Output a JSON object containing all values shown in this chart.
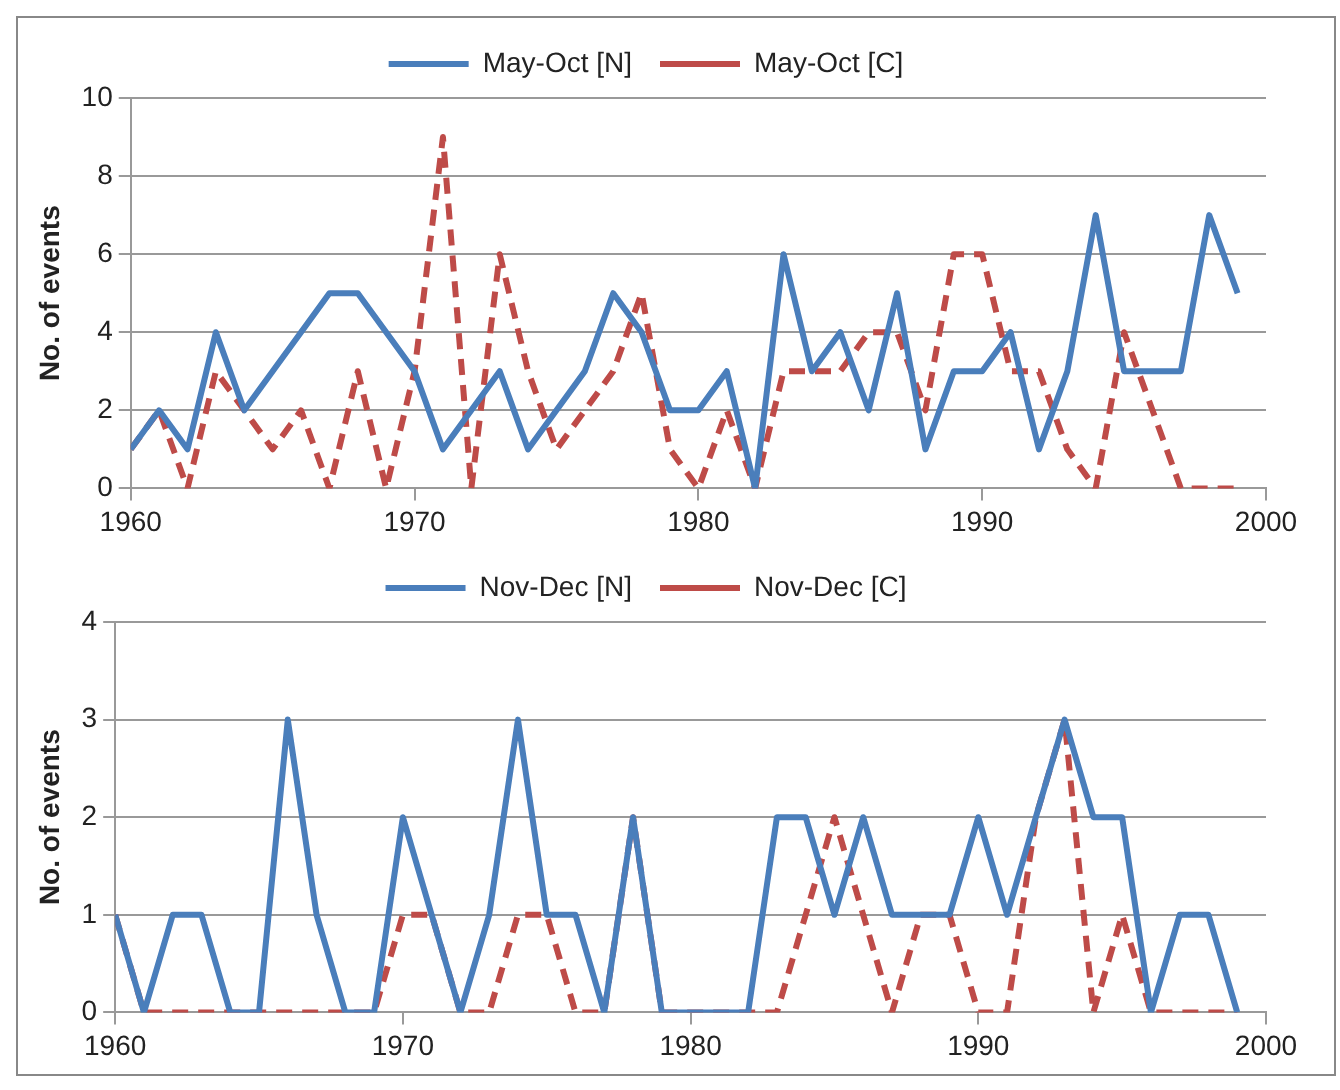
{
  "chart_data": [
    {
      "type": "line",
      "ylabel": "No. of events",
      "x": [
        1960,
        1961,
        1962,
        1963,
        1964,
        1965,
        1966,
        1967,
        1968,
        1969,
        1970,
        1971,
        1972,
        1973,
        1974,
        1975,
        1976,
        1977,
        1978,
        1979,
        1980,
        1981,
        1982,
        1983,
        1984,
        1985,
        1986,
        1987,
        1988,
        1989,
        1990,
        1991,
        1992,
        1993,
        1994,
        1995,
        1996,
        1997,
        1998,
        1999
      ],
      "series": [
        {
          "name": "May-Oct [N]",
          "color": "#4a7ebb",
          "line_style": "solid",
          "values": [
            1,
            2,
            1,
            4,
            2,
            3,
            4,
            5,
            5,
            4,
            3,
            1,
            2,
            3,
            1,
            2,
            3,
            5,
            4,
            2,
            2,
            3,
            0,
            6,
            3,
            4,
            2,
            5,
            1,
            3,
            3,
            4,
            1,
            3,
            7,
            3,
            3,
            3,
            7,
            5
          ]
        },
        {
          "name": "May-Oct [C]",
          "color": "#be4b48",
          "line_style": "dashed",
          "values": [
            1,
            2,
            0,
            3,
            2,
            1,
            2,
            0,
            3,
            0,
            3,
            9,
            0,
            6,
            3,
            1,
            2,
            3,
            5,
            1,
            0,
            2,
            0,
            3,
            3,
            3,
            4,
            4,
            2,
            6,
            6,
            3,
            3,
            1,
            0,
            4,
            2,
            0,
            0,
            0
          ]
        }
      ],
      "xlim": [
        1960,
        2000
      ],
      "xticks": [
        1960,
        1970,
        1980,
        1990,
        2000
      ],
      "ylim": [
        0,
        10
      ],
      "yticks": [
        0,
        2,
        4,
        6,
        8,
        10
      ],
      "grid": "y",
      "legend": "top",
      "marker": "none"
    },
    {
      "type": "line",
      "ylabel": "No. of events",
      "x": [
        1960,
        1961,
        1962,
        1963,
        1964,
        1965,
        1966,
        1967,
        1968,
        1969,
        1970,
        1971,
        1972,
        1973,
        1974,
        1975,
        1976,
        1977,
        1978,
        1979,
        1980,
        1981,
        1982,
        1983,
        1984,
        1985,
        1986,
        1987,
        1988,
        1989,
        1990,
        1991,
        1992,
        1993,
        1994,
        1995,
        1996,
        1997,
        1998,
        1999
      ],
      "series": [
        {
          "name": "Nov-Dec [N]",
          "color": "#4a7ebb",
          "line_style": "solid",
          "values": [
            1,
            0,
            1,
            1,
            0,
            0,
            3,
            1,
            0,
            0,
            2,
            1,
            0,
            1,
            3,
            1,
            1,
            0,
            2,
            0,
            0,
            0,
            0,
            2,
            2,
            1,
            2,
            1,
            1,
            1,
            2,
            1,
            2,
            3,
            2,
            2,
            0,
            1,
            1,
            0
          ]
        },
        {
          "name": "Nov-Dec [C]",
          "color": "#be4b48",
          "line_style": "dashed",
          "values": [
            1,
            0,
            0,
            0,
            0,
            0,
            0,
            0,
            0,
            0,
            1,
            1,
            0,
            0,
            1,
            1,
            0,
            0,
            2,
            0,
            0,
            0,
            0,
            0,
            1,
            2,
            1,
            0,
            1,
            1,
            0,
            0,
            2,
            3,
            0,
            1,
            0,
            0,
            0,
            0
          ]
        }
      ],
      "xlim": [
        1960,
        2000
      ],
      "xticks": [
        1960,
        1970,
        1980,
        1990,
        2000
      ],
      "ylim": [
        0,
        4
      ],
      "yticks": [
        0,
        1,
        2,
        3,
        4
      ],
      "grid": "y",
      "legend": "top",
      "marker": "none"
    }
  ]
}
